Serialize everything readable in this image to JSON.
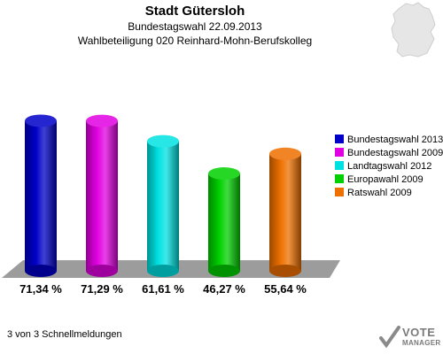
{
  "header": {
    "title": "Stadt Gütersloh",
    "subtitle": "Bundestagswahl 22.09.2013",
    "subtitle2": "Wahlbeteiligung 020 Reinhard-Mohn-Berufskolleg"
  },
  "footer": {
    "note": "3 von 3 Schnellmeldungen",
    "logo_line1": "VOTE",
    "logo_line2": "MANAGER"
  },
  "chart_data": {
    "type": "bar",
    "categories": [
      "Bundestagswahl 2013",
      "Bundestagswahl 2009",
      "Landtagswahl 2012",
      "Europawahl 2009",
      "Ratswahl 2009"
    ],
    "values": [
      71.34,
      71.29,
      61.61,
      46.27,
      55.64
    ],
    "value_labels": [
      "71,34 %",
      "71,29 %",
      "61,61 %",
      "46,27 %",
      "55,64 %"
    ],
    "colors": [
      "#0000c8",
      "#e100e1",
      "#00e1e1",
      "#00d000",
      "#ee7000"
    ],
    "legend": [
      "Bundestagswahl 2013",
      "Bundestagswahl 2009",
      "Landtagswahl 2012",
      "Europawahl 2009",
      "Ratswahl 2009"
    ],
    "legend_position": "right",
    "ylim": [
      0,
      100
    ],
    "grid": false
  }
}
